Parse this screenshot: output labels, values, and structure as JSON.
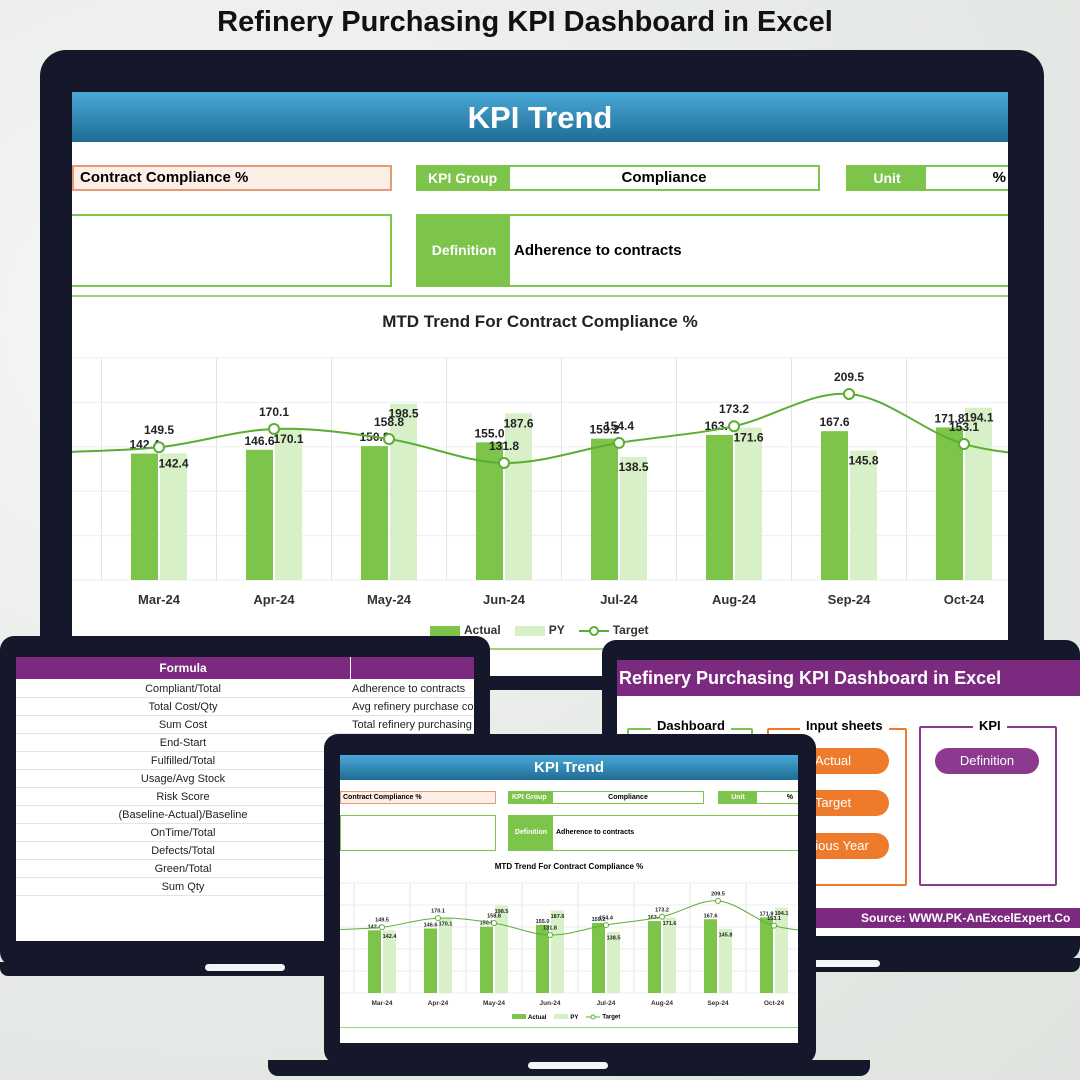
{
  "page_title": "Refinery Purchasing KPI Dashboard in Excel",
  "colors": {
    "actual": "#7cc44a",
    "py": "#d7f0c8",
    "target": "#5bad33",
    "purple": "#7b2a80",
    "orange": "#ee7a2c",
    "blue": "#2a82b4"
  },
  "kpi_sheet": {
    "banner": "KPI Trend",
    "kpi_name": "Contract Compliance %",
    "kpi_group_label": "KPI Group",
    "kpi_group_value": "Compliance",
    "unit_label": "Unit",
    "unit_value": "%",
    "definition_label": "Definition",
    "definition_value": "Adherence to contracts",
    "chart_title": "MTD Trend For Contract Compliance %",
    "legend": {
      "actual": "Actual",
      "py": "PY",
      "target": "Target"
    }
  },
  "chart_data": {
    "type": "bar",
    "title": "MTD Trend For Contract Compliance %",
    "categories": [
      "Mar-24",
      "Apr-24",
      "May-24",
      "Jun-24",
      "Jul-24",
      "Aug-24",
      "Sep-24",
      "Oct-24"
    ],
    "series": [
      {
        "name": "Actual",
        "values": [
          142.4,
          146.6,
          150.8,
          155.0,
          159.2,
          163.4,
          167.6,
          171.8
        ]
      },
      {
        "name": "PY",
        "values": [
          142.4,
          170.1,
          198.5,
          187.6,
          138.5,
          171.6,
          145.8,
          194.1
        ]
      },
      {
        "name": "Target",
        "type": "line",
        "values": [
          149.5,
          170.1,
          158.8,
          131.8,
          154.4,
          173.2,
          209.5,
          153.1
        ]
      }
    ],
    "ylim": [
      0,
      250
    ],
    "grid": true,
    "legend_position": "bottom"
  },
  "formula_table": {
    "header": "Formula",
    "rows": [
      {
        "formula": "Compliant/Total",
        "definition": "Adherence to contracts"
      },
      {
        "formula": "Total Cost/Qty",
        "definition": "Avg refinery purchase cost"
      },
      {
        "formula": "Sum Cost",
        "definition": "Total refinery purchasing sp"
      },
      {
        "formula": "End-Start",
        "definition": ""
      },
      {
        "formula": "Fulfilled/Total",
        "definition": ""
      },
      {
        "formula": "Usage/Avg Stock",
        "definition": ""
      },
      {
        "formula": "Risk Score",
        "definition": ""
      },
      {
        "formula": "(Baseline-Actual)/Baseline",
        "definition": ""
      },
      {
        "formula": "OnTime/Total",
        "definition": ""
      },
      {
        "formula": "Defects/Total",
        "definition": ""
      },
      {
        "formula": "Green/Total",
        "definition": ""
      },
      {
        "formula": "Sum Qty",
        "definition": ""
      }
    ]
  },
  "dashboard_menu": {
    "title": "Refinery Purchasing KPI Dashboard in Excel",
    "sections": {
      "dashboard": "Dashboard",
      "input": "Input sheets",
      "kpi": "KPI"
    },
    "buttons": {
      "actual": "Actual",
      "target": "Target",
      "previous_year": "revious Year",
      "definition": "Definition"
    },
    "source": "Source: WWW.PK-AnExcelExpert.Co"
  }
}
